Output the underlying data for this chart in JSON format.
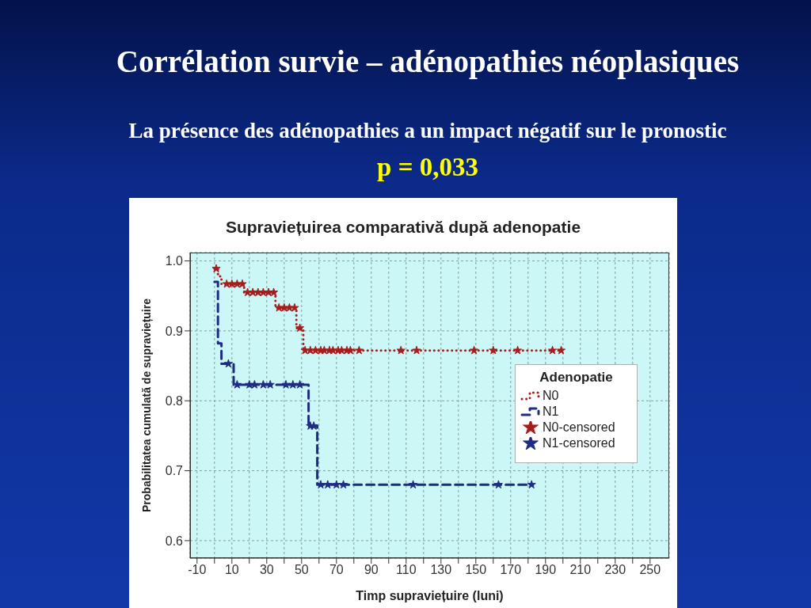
{
  "chart_data": {
    "type": "step",
    "title": "Corrélation survie – adénopathies néoplasiques",
    "subtitle": "La présence des adénopathies a un impact négatif sur le pronostic",
    "annotations": [
      "p = 0,033",
      "Supraviețuirea comparativă după adenopatie"
    ],
    "xlabel": "Timp supraviețuire (luni)",
    "ylabel": "Probabilitatea cumulată de supraviețuire",
    "legend_title": "Adenopatie",
    "legend": "right",
    "grid": true,
    "xlim": [
      -14,
      261
    ],
    "xticks": [
      -10,
      {
        "value": 0,
        "label": null
      },
      10,
      {
        "value": 20,
        "label": null
      },
      30,
      {
        "value": 40,
        "label": null
      },
      50,
      {
        "value": 60,
        "label": null
      },
      70,
      {
        "value": 80,
        "label": null
      },
      90,
      {
        "value": 100,
        "label": null
      },
      110,
      {
        "value": 120,
        "label": null
      },
      130,
      {
        "value": 140,
        "label": null
      },
      150,
      {
        "value": 160,
        "label": null
      },
      170,
      {
        "value": 180,
        "label": null
      },
      190,
      {
        "value": 200,
        "label": null
      },
      210,
      {
        "value": 220,
        "label": null
      },
      230,
      {
        "value": 240,
        "label": null
      },
      250
    ],
    "ylim": [
      0.575,
      1.012
    ],
    "yticks": [
      0.6,
      0.7,
      0.8,
      0.9,
      {
        "value": 1.0,
        "label": "1.0"
      }
    ],
    "series": [
      {
        "name": "N0",
        "color": "#a81c1c",
        "line_style": "dotted",
        "marker": "none",
        "x": [
          0,
          2,
          4,
          17,
          35,
          47,
          51,
          199
        ],
        "values": [
          0.989,
          0.978,
          0.967,
          0.955,
          0.933,
          0.904,
          0.872,
          0.872
        ]
      },
      {
        "name": "N1",
        "color": "#1f2d80",
        "line_style": "dashed",
        "marker": "none",
        "x": [
          0,
          2,
          4,
          11,
          54,
          59,
          182
        ],
        "values": [
          0.97,
          0.882,
          0.853,
          0.823,
          0.764,
          0.68,
          0.68
        ]
      },
      {
        "name": "N0-censored",
        "type": "scatter",
        "color": "#a81c1c",
        "marker": "star",
        "x": [
          1,
          7,
          10,
          13,
          16,
          19,
          22,
          25,
          28,
          31,
          34,
          37,
          40,
          43,
          46,
          49,
          52,
          55,
          58,
          61,
          63,
          66,
          68,
          71,
          73,
          76,
          78,
          83,
          107,
          116,
          149,
          160,
          174,
          194,
          199
        ],
        "values": [
          0.989,
          0.967,
          0.967,
          0.967,
          0.967,
          0.955,
          0.955,
          0.955,
          0.955,
          0.955,
          0.955,
          0.933,
          0.933,
          0.933,
          0.933,
          0.904,
          0.872,
          0.872,
          0.872,
          0.872,
          0.872,
          0.872,
          0.872,
          0.872,
          0.872,
          0.872,
          0.872,
          0.872,
          0.872,
          0.872,
          0.872,
          0.872,
          0.872,
          0.872,
          0.872
        ]
      },
      {
        "name": "N1-censored",
        "type": "scatter",
        "color": "#1f2d80",
        "marker": "star",
        "x": [
          8,
          13,
          20,
          23,
          28,
          32,
          41,
          45,
          49,
          55,
          57,
          61,
          65,
          70,
          74,
          114,
          163,
          182
        ],
        "values": [
          0.853,
          0.823,
          0.823,
          0.823,
          0.823,
          0.823,
          0.823,
          0.823,
          0.823,
          0.764,
          0.764,
          0.68,
          0.68,
          0.68,
          0.68,
          0.68,
          0.68,
          0.68
        ]
      }
    ]
  }
}
